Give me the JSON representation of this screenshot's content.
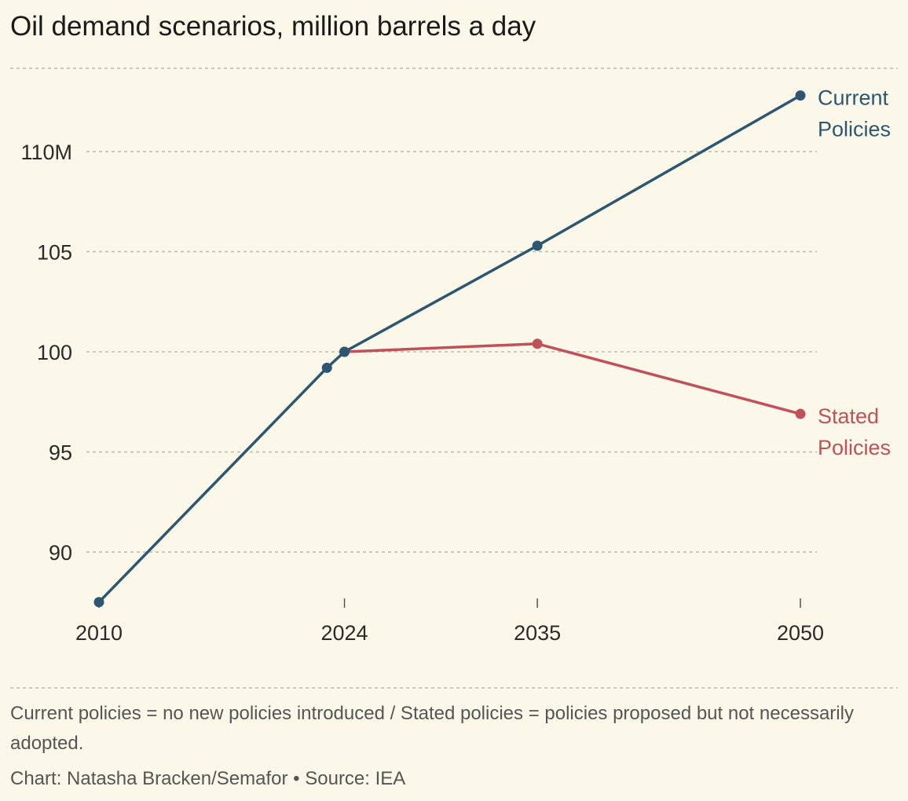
{
  "title": "Oil demand scenarios, million barrels a day",
  "footnote": "Current policies = no new policies introduced / Stated policies = policies proposed but not necessarily adopted.",
  "credit": "Chart: Natasha Bracken/Semafor • Source: IEA",
  "colors": {
    "current": "#2d5670",
    "stated": "#c0505a",
    "grid": "#bdb9a8",
    "background": "#fbf8e9"
  },
  "chart_data": {
    "type": "line",
    "title": "Oil demand scenarios, million barrels a day",
    "xlabel": "",
    "ylabel": "",
    "xlim": [
      2010,
      2050
    ],
    "ylim": [
      86,
      114
    ],
    "x_ticks": [
      {
        "value": 2010,
        "label": "2010"
      },
      {
        "value": 2024,
        "label": "2024"
      },
      {
        "value": 2035,
        "label": "2035"
      },
      {
        "value": 2050,
        "label": "2050"
      }
    ],
    "y_ticks": [
      {
        "value": 90,
        "label": "90"
      },
      {
        "value": 95,
        "label": "95"
      },
      {
        "value": 100,
        "label": "100"
      },
      {
        "value": 105,
        "label": "105"
      },
      {
        "value": 110,
        "label": "110M"
      }
    ],
    "grid": true,
    "series": [
      {
        "name": "Current Policies",
        "label_lines": [
          "Current",
          "Policies"
        ],
        "color_key": "current",
        "points": [
          {
            "x": 2010,
            "y": 87.5
          },
          {
            "x": 2023,
            "y": 99.2
          },
          {
            "x": 2024,
            "y": 100
          },
          {
            "x": 2035,
            "y": 105.3
          },
          {
            "x": 2050,
            "y": 112.8
          }
        ]
      },
      {
        "name": "Stated Policies",
        "label_lines": [
          "Stated",
          "Policies"
        ],
        "color_key": "stated",
        "points": [
          {
            "x": 2024,
            "y": 100
          },
          {
            "x": 2035,
            "y": 100.4
          },
          {
            "x": 2050,
            "y": 96.9
          }
        ]
      }
    ]
  }
}
